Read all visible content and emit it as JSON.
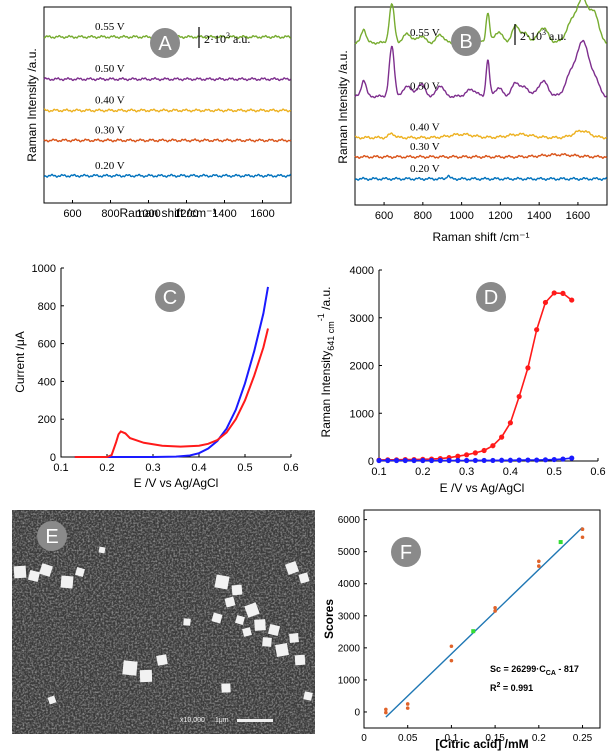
{
  "chart_data": [
    {
      "panel": "A",
      "type": "line",
      "xlabel": "Raman shift /cm⁻¹",
      "ylabel": "Raman Intensity /a.u.",
      "xlim": [
        450,
        1750
      ],
      "xticks": [
        600,
        800,
        1000,
        1200,
        1400,
        1600
      ],
      "scale_bar": {
        "base": "2·10",
        "exp": "3",
        "unit": "a.u."
      },
      "series": [
        {
          "label": "0.55 V",
          "color": "#77ac30",
          "offset": 6.1,
          "peaks": []
        },
        {
          "label": "0.50 V",
          "color": "#7e2f8e",
          "offset": 4.55,
          "peaks": []
        },
        {
          "label": "0.40 V",
          "color": "#edb120",
          "offset": 3.4,
          "peaks": []
        },
        {
          "label": "0.30 V",
          "color": "#d95319",
          "offset": 2.3,
          "peaks": []
        },
        {
          "label": "0.20 V",
          "color": "#0072bd",
          "offset": 1.0,
          "peaks": []
        }
      ]
    },
    {
      "panel": "B",
      "type": "line",
      "xlabel": "Raman shift /cm⁻¹",
      "ylabel": "Raman Intensity /a.u.",
      "xlim": [
        450,
        1750
      ],
      "xticks": [
        600,
        800,
        1000,
        1200,
        1400,
        1600
      ],
      "scale_bar": {
        "base": "2·10",
        "exp": "3",
        "unit": "a.u."
      },
      "series": [
        {
          "label": "0.55 V",
          "color": "#77ac30",
          "offset": 5.9,
          "peaks": [
            [
              495,
              0.5,
              12
            ],
            [
              640,
              1.4,
              13
            ],
            [
              720,
              0.35,
              18
            ],
            [
              790,
              0.25,
              20
            ],
            [
              890,
              0.3,
              18
            ],
            [
              1050,
              0.3,
              25
            ],
            [
              1135,
              1.1,
              9
            ],
            [
              1190,
              0.4,
              20
            ],
            [
              1280,
              0.6,
              20
            ],
            [
              1330,
              0.3,
              20
            ],
            [
              1420,
              0.55,
              25
            ],
            [
              1570,
              0.7,
              30
            ],
            [
              1630,
              1.5,
              30
            ],
            [
              1690,
              0.9,
              20
            ]
          ]
        },
        {
          "label": "0.50 V",
          "color": "#7e2f8e",
          "offset": 3.95,
          "peaks": [
            [
              495,
              0.6,
              12
            ],
            [
              640,
              1.8,
              13
            ],
            [
              720,
              0.4,
              18
            ],
            [
              790,
              0.45,
              20
            ],
            [
              890,
              0.4,
              18
            ],
            [
              1050,
              0.25,
              25
            ],
            [
              1135,
              1.3,
              9
            ],
            [
              1190,
              0.3,
              20
            ],
            [
              1280,
              0.5,
              20
            ],
            [
              1330,
              0.3,
              20
            ],
            [
              1420,
              0.55,
              25
            ],
            [
              1570,
              0.9,
              30
            ],
            [
              1630,
              1.9,
              28
            ],
            [
              1690,
              0.6,
              20
            ]
          ]
        },
        {
          "label": "0.40 V",
          "color": "#edb120",
          "offset": 2.45,
          "peaks": [
            [
              640,
              0.15,
              15
            ],
            [
              1000,
              0.12,
              60
            ],
            [
              1300,
              0.12,
              60
            ],
            [
              1620,
              0.25,
              40
            ]
          ]
        },
        {
          "label": "0.30 V",
          "color": "#d95319",
          "offset": 1.75,
          "peaks": [
            [
              1500,
              0.08,
              80
            ]
          ]
        },
        {
          "label": "0.20 V",
          "color": "#0072bd",
          "offset": 0.95,
          "peaks": [
            [
              930,
              0.12,
              8
            ]
          ]
        }
      ]
    },
    {
      "panel": "C",
      "type": "line",
      "xlabel": "E /V vs Ag/AgCl",
      "ylabel": "Current /μA",
      "xlim": [
        0.1,
        0.6
      ],
      "ylim": [
        0,
        1000
      ],
      "xticks": [
        0.1,
        0.2,
        0.3,
        0.4,
        0.5,
        0.6
      ],
      "yticks": [
        0,
        200,
        400,
        600,
        800,
        1000
      ],
      "series": [
        {
          "name_color": "blue",
          "color": "#1a1aff",
          "x": [
            0.13,
            0.2,
            0.25,
            0.3,
            0.35,
            0.38,
            0.4,
            0.42,
            0.44,
            0.46,
            0.48,
            0.5,
            0.52,
            0.54,
            0.55
          ],
          "y": [
            0,
            0,
            0,
            0,
            2,
            8,
            20,
            45,
            85,
            150,
            250,
            390,
            560,
            760,
            900
          ]
        },
        {
          "name_color": "red",
          "color": "#ff1a1a",
          "x": [
            0.13,
            0.2,
            0.21,
            0.22,
            0.225,
            0.23,
            0.24,
            0.25,
            0.28,
            0.32,
            0.36,
            0.4,
            0.42,
            0.44,
            0.46,
            0.48,
            0.5,
            0.52,
            0.54,
            0.55
          ],
          "y": [
            0,
            0,
            10,
            80,
            120,
            135,
            125,
            100,
            75,
            60,
            55,
            60,
            70,
            90,
            130,
            200,
            300,
            430,
            580,
            680
          ]
        }
      ]
    },
    {
      "panel": "D",
      "type": "line",
      "xlabel": "E /V vs Ag/AgCl",
      "ylabel": "Raman Intensity",
      "ylabel_sub": "641 cm",
      "ylabel_sup": "-1",
      "ylabel_tail": " /a.u.",
      "xlim": [
        0.1,
        0.6
      ],
      "ylim": [
        0,
        4000
      ],
      "xticks": [
        0.1,
        0.2,
        0.3,
        0.4,
        0.5,
        0.6
      ],
      "yticks": [
        0,
        1000,
        2000,
        3000,
        4000
      ],
      "series": [
        {
          "name_color": "red",
          "color": "#ff1a1a",
          "x": [
            0.1,
            0.12,
            0.14,
            0.16,
            0.18,
            0.2,
            0.22,
            0.24,
            0.26,
            0.28,
            0.3,
            0.32,
            0.34,
            0.36,
            0.38,
            0.4,
            0.42,
            0.44,
            0.46,
            0.48,
            0.5,
            0.52,
            0.54
          ],
          "y": [
            20,
            25,
            25,
            30,
            30,
            35,
            40,
            50,
            70,
            100,
            130,
            170,
            220,
            320,
            500,
            800,
            1350,
            1950,
            2750,
            3320,
            3520,
            3510,
            3370
          ]
        },
        {
          "name_color": "blue",
          "color": "#1a1aff",
          "x": [
            0.1,
            0.12,
            0.14,
            0.16,
            0.18,
            0.2,
            0.22,
            0.24,
            0.26,
            0.28,
            0.3,
            0.32,
            0.34,
            0.36,
            0.38,
            0.4,
            0.42,
            0.44,
            0.46,
            0.48,
            0.5,
            0.52,
            0.54
          ],
          "y": [
            10,
            10,
            10,
            10,
            10,
            10,
            10,
            10,
            10,
            10,
            10,
            12,
            12,
            12,
            15,
            15,
            18,
            20,
            20,
            25,
            30,
            40,
            60
          ]
        }
      ]
    },
    {
      "panel": "F",
      "type": "scatter",
      "xlabel": "[Citric acid] /mM",
      "ylabel": "Scores",
      "xlim": [
        0,
        0.27
      ],
      "ylim": [
        -500,
        6300
      ],
      "xticks": [
        0,
        0.05,
        0.1,
        0.15,
        0.2,
        0.25
      ],
      "yticks": [
        0,
        1000,
        2000,
        3000,
        4000,
        5000,
        6000
      ],
      "fit": {
        "slope": 26299,
        "intercept": -817,
        "x_range": [
          0.025,
          0.25
        ],
        "color": "#1f77b4"
      },
      "equation_prefix": "Sc = 26299·C",
      "equation_sub": "CA",
      "equation_suffix": " - 817",
      "r2_label": "R",
      "r2_sup": "2",
      "r2_value": " = 0.991",
      "calibration_points": {
        "color": "#e0632a",
        "points": [
          [
            0.025,
            -20
          ],
          [
            0.025,
            80
          ],
          [
            0.05,
            120
          ],
          [
            0.05,
            250
          ],
          [
            0.1,
            1600
          ],
          [
            0.1,
            2050
          ],
          [
            0.15,
            3150
          ],
          [
            0.15,
            3250
          ],
          [
            0.2,
            4550
          ],
          [
            0.2,
            4700
          ],
          [
            0.25,
            5450
          ],
          [
            0.25,
            5700
          ]
        ]
      },
      "validation_points": {
        "color": "#33dd33",
        "points": [
          [
            0.125,
            2520
          ],
          [
            0.225,
            5300
          ]
        ]
      }
    }
  ],
  "panel_e": {
    "badge": "E",
    "scalebar_mag": "x10,000",
    "scalebar_len": "1μm"
  },
  "badges": [
    "A",
    "B",
    "C",
    "D",
    "F"
  ]
}
